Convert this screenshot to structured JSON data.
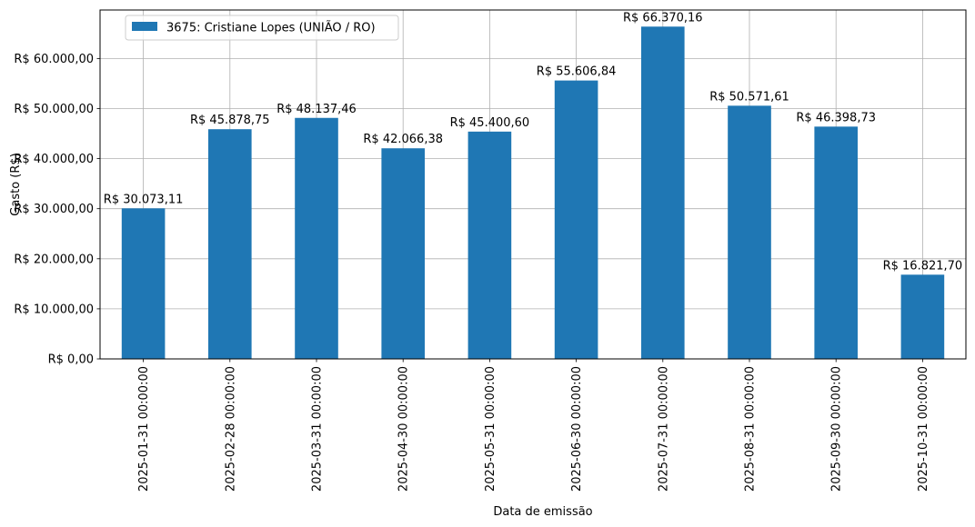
{
  "chart_data": {
    "type": "bar",
    "categories": [
      "2025-01-31 00:00:00",
      "2025-02-28 00:00:00",
      "2025-03-31 00:00:00",
      "2025-04-30 00:00:00",
      "2025-05-31 00:00:00",
      "2025-06-30 00:00:00",
      "2025-07-31 00:00:00",
      "2025-08-31 00:00:00",
      "2025-09-30 00:00:00",
      "2025-10-31 00:00:00"
    ],
    "series": [
      {
        "name": "3675: Cristiane Lopes (UNIÃO / RO)",
        "color": "#1f77b4",
        "values": [
          30073.11,
          45878.75,
          48137.46,
          42066.38,
          45400.6,
          55606.84,
          66370.16,
          50571.61,
          46398.73,
          16821.7
        ],
        "labels": [
          "R$ 30.073,11",
          "R$ 45.878,75",
          "R$ 48.137,46",
          "R$ 42.066,38",
          "R$ 45.400,60",
          "R$ 55.606,84",
          "R$ 66.370,16",
          "R$ 50.571,61",
          "R$ 46.398,73",
          "R$ 16.821,70"
        ]
      }
    ],
    "xlabel": "Data de emissão",
    "ylabel": "Gasto (R$)",
    "ylim": [
      0,
      69689.67
    ],
    "yticks": [
      0,
      10000,
      20000,
      30000,
      40000,
      50000,
      60000
    ],
    "ytick_labels": [
      "R$ 0,00",
      "R$ 10.000,00",
      "R$ 20.000,00",
      "R$ 30.000,00",
      "R$ 40.000,00",
      "R$ 50.000,00",
      "R$ 60.000,00"
    ],
    "grid": true,
    "legend_position": "top-left"
  }
}
